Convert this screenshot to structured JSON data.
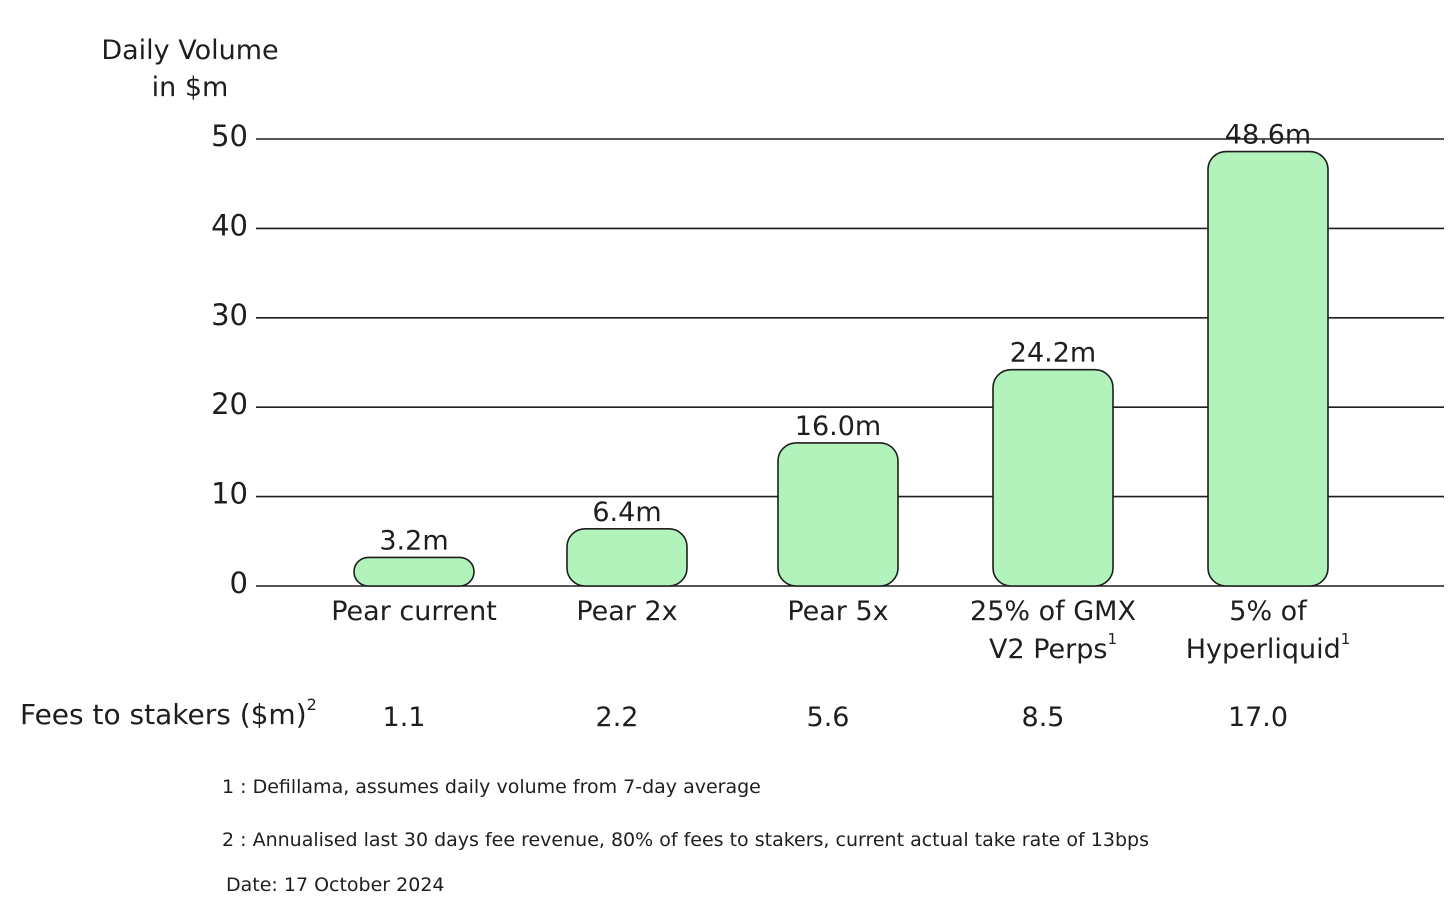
{
  "chart_data": {
    "type": "bar",
    "ylabel": [
      "Daily Volume",
      "in $m"
    ],
    "ylim": [
      0,
      50
    ],
    "yticks": [
      0,
      10,
      20,
      30,
      40,
      50
    ],
    "grid": true,
    "legend": "none",
    "categories": [
      {
        "lines": [
          "Pear current"
        ],
        "footnote": ""
      },
      {
        "lines": [
          "Pear 2x"
        ],
        "footnote": ""
      },
      {
        "lines": [
          "Pear 5x"
        ],
        "footnote": ""
      },
      {
        "lines": [
          "25% of GMX",
          "V2 Perps"
        ],
        "footnote": "1"
      },
      {
        "lines": [
          "5% of",
          "Hyperliquid"
        ],
        "footnote": "1"
      }
    ],
    "values": [
      3.2,
      6.4,
      16.0,
      24.2,
      48.6
    ],
    "data_labels": [
      "3.2m",
      "6.4m",
      "16.0m",
      "24.2m",
      "48.6m"
    ],
    "bar_color": "#b2f2bb",
    "fees_row": {
      "label": "Fees to stakers ($m)",
      "footnote": "2",
      "values": [
        "1.1",
        "2.2",
        "5.6",
        "8.5",
        "17.0"
      ]
    },
    "footnotes": [
      "1 : Defillama, assumes daily volume from 7-day average",
      "2 : Annualised last 30 days fee revenue, 80% of fees to stakers, current actual take rate of 13bps"
    ],
    "date": "Date: 17 October 2024"
  }
}
